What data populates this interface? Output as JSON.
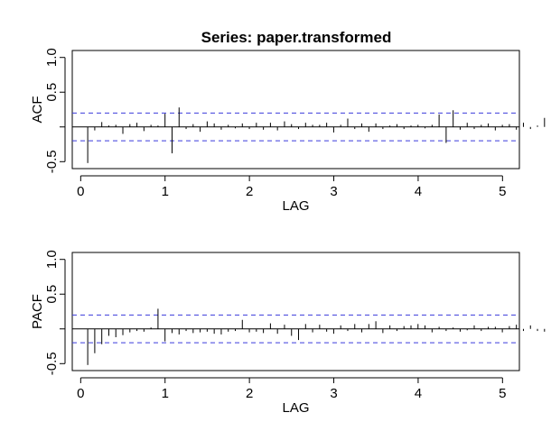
{
  "title": "Series:  paper.transformed",
  "colors": {
    "bars": "#000000",
    "ci": "#3b3bdc",
    "frame": "#000000",
    "zero": "#000000"
  },
  "chart_data": [
    {
      "type": "bar",
      "panel": "acf",
      "title": "Series:  paper.transformed",
      "xlabel": "LAG",
      "ylabel": "ACF",
      "xlim": [
        -0.1,
        5.2
      ],
      "ylim": [
        -0.6,
        1.1
      ],
      "xticks": [
        0,
        1,
        2,
        3,
        4,
        5
      ],
      "xtick_labels": [
        "0",
        "1",
        "2",
        "3",
        "4",
        "5"
      ],
      "yticks": [
        -0.5,
        0,
        0.5,
        1.0
      ],
      "ytick_labels": [
        "-0.5",
        "",
        "0.5",
        "1.0"
      ],
      "ci": 0.2,
      "lag_step": 0.0833,
      "values": [
        -0.52,
        -0.05,
        0.07,
        0.02,
        0.03,
        -0.1,
        0.04,
        0.06,
        -0.06,
        0.03,
        0.02,
        0.19,
        -0.38,
        0.28,
        -0.03,
        0.04,
        -0.07,
        0.08,
        0.05,
        -0.04,
        0.03,
        -0.02,
        0.05,
        -0.03,
        0.06,
        -0.04,
        0.06,
        -0.05,
        0.08,
        0.04,
        -0.03,
        0.06,
        0.03,
        0.03,
        0.06,
        -0.08,
        0.03,
        0.12,
        -0.03,
        0.05,
        -0.07,
        0.05,
        -0.03,
        0.02,
        0.04,
        -0.03,
        0.02,
        0.03,
        -0.02,
        0.03,
        0.18,
        -0.23,
        0.24,
        -0.04,
        0.06,
        -0.03,
        0.03,
        0.05,
        -0.05,
        0.03,
        0.04,
        -0.04,
        0.06,
        -0.03,
        0.02,
        0.13,
        -0.18,
        0.17,
        -0.1,
        0.04,
        0.02
      ]
    },
    {
      "type": "bar",
      "panel": "pacf",
      "xlabel": "LAG",
      "ylabel": "PACF",
      "xlim": [
        -0.1,
        5.2
      ],
      "ylim": [
        -0.6,
        1.1
      ],
      "xticks": [
        0,
        1,
        2,
        3,
        4,
        5
      ],
      "xtick_labels": [
        "0",
        "1",
        "2",
        "3",
        "4",
        "5"
      ],
      "yticks": [
        -0.5,
        0,
        0.5,
        1.0
      ],
      "ytick_labels": [
        "-0.5",
        "",
        "0.5",
        "1.0"
      ],
      "ci": 0.2,
      "lag_step": 0.0833,
      "values": [
        -0.52,
        -0.35,
        -0.22,
        -0.1,
        -0.12,
        -0.09,
        -0.05,
        -0.03,
        -0.04,
        0.02,
        0.29,
        -0.18,
        -0.06,
        -0.08,
        -0.03,
        -0.06,
        -0.05,
        -0.04,
        -0.07,
        -0.08,
        -0.04,
        -0.03,
        0.13,
        -0.05,
        -0.04,
        -0.06,
        0.08,
        -0.07,
        0.06,
        -0.1,
        -0.16,
        0.07,
        -0.05,
        0.06,
        -0.04,
        -0.07,
        0.05,
        -0.03,
        0.07,
        -0.05,
        0.07,
        0.11,
        -0.06,
        0.05,
        -0.03,
        0.04,
        0.05,
        0.07,
        0.05,
        -0.05,
        0.03,
        -0.03,
        0.02,
        -0.04,
        -0.02,
        0.05,
        -0.03,
        0.03,
        0.03,
        -0.05,
        0.04,
        0.06,
        -0.03,
        0.05,
        -0.03,
        -0.04,
        -0.09,
        0.03,
        -0.02,
        0.03,
        0.02
      ]
    }
  ]
}
